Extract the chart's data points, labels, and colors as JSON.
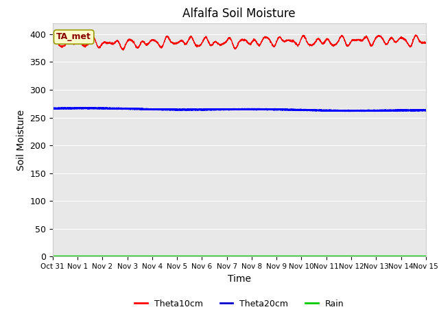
{
  "title": "Alfalfa Soil Moisture",
  "xlabel": "Time",
  "ylabel": "Soil Moisture",
  "annotation": "TA_met",
  "ylim": [
    0,
    420
  ],
  "yticks": [
    0,
    50,
    100,
    150,
    200,
    250,
    300,
    350,
    400
  ],
  "xtick_labels": [
    "Oct 31",
    "Nov 1",
    "Nov 2",
    "Nov 3",
    "Nov 4",
    "Nov 5",
    "Nov 6",
    "Nov 7",
    "Nov 8",
    "Nov 9",
    "Nov 10",
    "Nov 11",
    "Nov 12",
    "Nov 13",
    "Nov 14",
    "Nov 15"
  ],
  "legend_labels": [
    "Theta10cm",
    "Theta20cm",
    "Rain"
  ],
  "legend_colors": [
    "#ff0000",
    "#0000cc",
    "#00cc00"
  ],
  "plot_bg": "#e8e8e8",
  "fig_bg": "#ffffff",
  "theta10_color": "#ff0000",
  "theta20_color": "#0000ff",
  "rain_color": "#00cc00",
  "annotation_bg": "#ffffcc",
  "annotation_border": "#999900",
  "annotation_text_color": "#880000",
  "grid_color": "#ffffff",
  "n_points": 3000
}
